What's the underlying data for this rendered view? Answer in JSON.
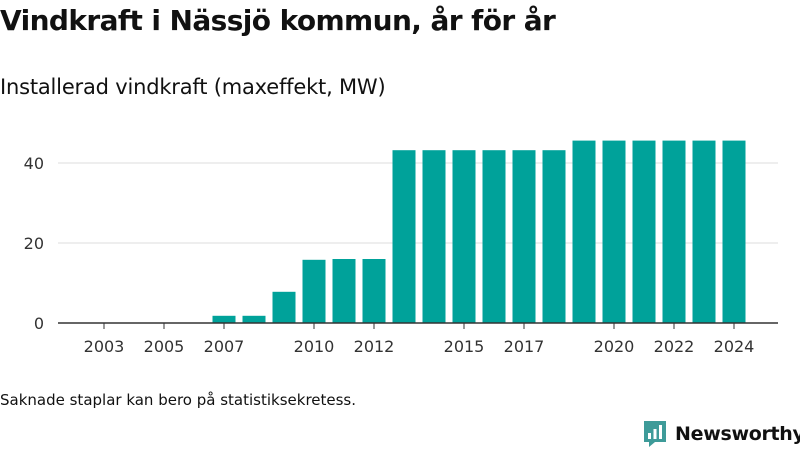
{
  "title": "Vindkraft i Nässjö kommun, år för år",
  "subtitle": "Installerad vindkraft (maxeffekt, MW)",
  "note": "Saknade staplar kan bero på statistiksekretess.",
  "brand": {
    "name": "Newsworthy",
    "icon": "newsworthy-logo-icon",
    "color": "#3e9b99"
  },
  "colors": {
    "bar": "#00a29a",
    "grid": "#dddddd",
    "axis": "#333333",
    "text": "#111111",
    "tick_label": "#333333"
  },
  "chart_data": {
    "type": "bar",
    "title": "Vindkraft i Nässjö kommun, år för år",
    "subtitle": "Installerad vindkraft (maxeffekt, MW)",
    "xlabel": "",
    "ylabel": "",
    "categories": [
      2003,
      2004,
      2005,
      2006,
      2007,
      2008,
      2009,
      2010,
      2011,
      2012,
      2013,
      2014,
      2015,
      2016,
      2017,
      2018,
      2019,
      2020,
      2021,
      2022,
      2023,
      2024
    ],
    "values": [
      0,
      0,
      0,
      0,
      1.8,
      1.8,
      7.8,
      15.8,
      16,
      16,
      43.2,
      43.2,
      43.2,
      43.2,
      43.2,
      43.2,
      45.6,
      45.6,
      45.6,
      45.6,
      45.6,
      45.6
    ],
    "x_tick_labels": [
      "2003",
      "2005",
      "2007",
      "2010",
      "2012",
      "2015",
      "2017",
      "2020",
      "2022",
      "2024"
    ],
    "y_ticks": [
      0,
      20,
      40
    ],
    "ylim": [
      0,
      47
    ],
    "grid": true,
    "legend": "none"
  }
}
